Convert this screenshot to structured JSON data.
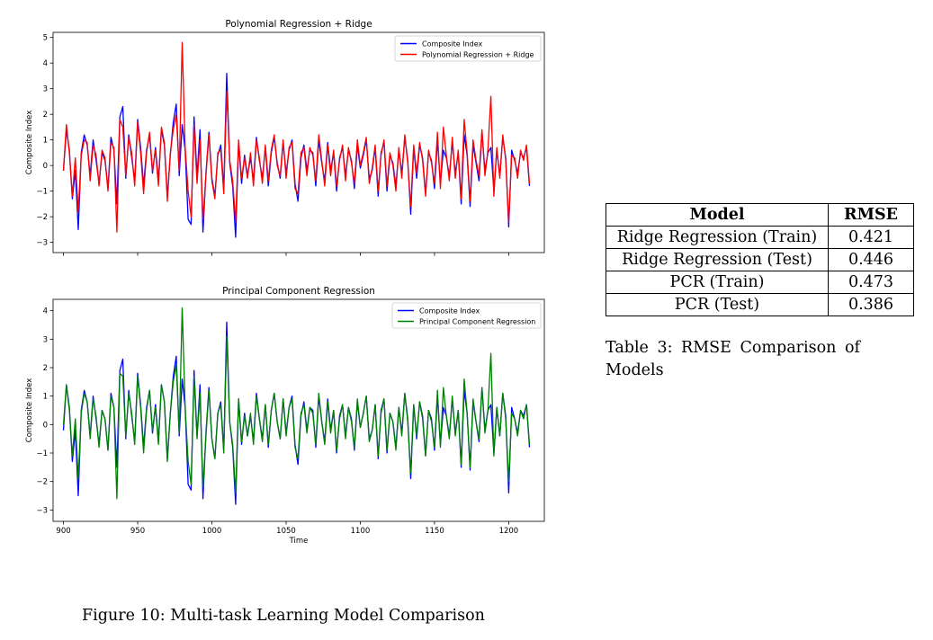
{
  "figure_caption": "Figure 10: Multi-task Learning Model Comparison",
  "table": {
    "headers": [
      "Model",
      "RMSE"
    ],
    "rows": [
      [
        "Ridge Regression (Train)",
        "0.421"
      ],
      [
        "Ridge Regression (Test)",
        "0.446"
      ],
      [
        "PCR (Train)",
        "0.473"
      ],
      [
        "PCR (Test)",
        "0.386"
      ]
    ],
    "caption": "Table 3: RMSE Comparison of Models"
  },
  "chart_data": [
    {
      "type": "line",
      "title": "Polynomial Regression + Ridge",
      "xlabel": "",
      "ylabel": "Composite Index",
      "xlim": [
        893,
        1224
      ],
      "ylim": [
        -3.4,
        5.2
      ],
      "yticks": [
        -3,
        -2,
        -1,
        0,
        1,
        2,
        3,
        4,
        5
      ],
      "ytick_labels": [
        "−3",
        "−2",
        "−1",
        "0",
        "1",
        "2",
        "3",
        "4",
        "5"
      ],
      "xticks": [
        900,
        950,
        1000,
        1050,
        1100,
        1150,
        1200
      ],
      "xtick_labels": [],
      "grid": false,
      "legend_position": "top-right",
      "x_start": 900,
      "x_step": 2,
      "series": [
        {
          "name": "Composite Index",
          "color": "#0000ff",
          "values": [
            -0.2,
            1.4,
            0.6,
            -1.3,
            -0.2,
            -2.5,
            0.5,
            1.2,
            0.8,
            -0.4,
            1.0,
            0.2,
            -0.7,
            0.5,
            0.2,
            -0.9,
            1.1,
            0.6,
            -1.5,
            1.9,
            2.3,
            -0.5,
            1.2,
            0.3,
            -0.6,
            1.8,
            0.7,
            -0.8,
            0.6,
            1.2,
            -0.3,
            0.7,
            -0.6,
            1.4,
            0.8,
            -1.2,
            0.4,
            1.7,
            2.4,
            -0.4,
            1.6,
            0.6,
            -2.1,
            -2.3,
            1.9,
            -0.4,
            1.4,
            -2.6,
            -0.3,
            1.3,
            -0.5,
            -1.2,
            0.4,
            0.8,
            -0.9,
            3.6,
            0.1,
            -0.8,
            -2.8,
            0.9,
            -0.7,
            0.4,
            -0.4,
            0.3,
            -0.6,
            1.1,
            0.2,
            -0.5,
            0.7,
            -0.8,
            0.5,
            1.1,
            0.1,
            -0.5,
            0.9,
            -0.3,
            0.6,
            1.0,
            -0.7,
            -1.4,
            0.3,
            0.8,
            -0.2,
            0.6,
            0.5,
            -0.8,
            1.0,
            0.1,
            -0.6,
            0.9,
            -0.2,
            0.5,
            -1.0,
            0.3,
            0.7,
            -0.4,
            0.6,
            0.2,
            -0.9,
            0.8,
            -0.1,
            0.4,
            1.0,
            -0.5,
            -0.2,
            0.7,
            -1.2,
            0.5,
            0.9,
            -1.0,
            0.4,
            0.1,
            -0.8,
            0.6,
            -0.3,
            1.1,
            0.2,
            -1.9,
            0.7,
            -0.5,
            0.8,
            0.3,
            -1.1,
            0.5,
            0.2,
            -0.9,
            1.0,
            -0.7,
            0.6,
            0.3,
            -0.4,
            0.9,
            -0.3,
            0.5,
            -1.5,
            1.2,
            0.4,
            -1.6,
            0.8,
            0.1,
            -0.6,
            1.3,
            -0.2,
            0.5,
            0.7,
            -1.0,
            0.6,
            -0.4,
            1.1,
            0.3,
            -2.4,
            0.6,
            0.2,
            -0.3,
            0.5,
            0.3,
            0.7,
            -0.8
          ]
        },
        {
          "name": "Polynomial Regression + Ridge",
          "color": "#ff0000",
          "values": [
            -0.2,
            1.6,
            0.5,
            -1.2,
            0.3,
            -1.8,
            0.4,
            1.0,
            0.9,
            -0.6,
            0.8,
            0.4,
            -0.8,
            0.6,
            0.3,
            -1.0,
            0.9,
            0.7,
            -2.6,
            1.8,
            1.5,
            -0.4,
            1.1,
            0.5,
            -0.8,
            1.7,
            0.5,
            -1.1,
            0.5,
            1.3,
            -0.2,
            0.6,
            -0.8,
            1.5,
            0.9,
            -1.4,
            0.5,
            1.4,
            2.0,
            -0.2,
            4.8,
            0.7,
            -1.0,
            -2.0,
            1.6,
            -0.7,
            1.0,
            -2.1,
            -0.4,
            1.2,
            -0.6,
            -1.3,
            0.5,
            0.6,
            -1.1,
            2.9,
            0.2,
            -0.6,
            -2.2,
            1.0,
            -0.5,
            0.3,
            -0.5,
            0.5,
            -0.8,
            1.0,
            0.3,
            -0.7,
            0.8,
            -0.6,
            0.6,
            1.2,
            0.0,
            -0.4,
            1.0,
            -0.5,
            0.7,
            0.9,
            -0.9,
            -1.1,
            0.5,
            0.7,
            -0.4,
            0.7,
            0.4,
            -0.6,
            1.2,
            0.2,
            -0.8,
            0.8,
            -0.4,
            0.6,
            -0.8,
            0.2,
            0.8,
            -0.6,
            0.7,
            0.1,
            -0.7,
            1.0,
            0.0,
            0.5,
            1.1,
            -0.7,
            -0.1,
            0.8,
            -1.0,
            0.4,
            1.0,
            -0.8,
            0.5,
            0.0,
            -1.0,
            0.7,
            -0.5,
            1.2,
            0.1,
            -1.6,
            0.8,
            -0.3,
            0.9,
            0.2,
            -1.2,
            0.6,
            0.1,
            -0.7,
            1.3,
            -0.9,
            1.5,
            0.4,
            -0.6,
            1.1,
            -0.5,
            0.6,
            -1.3,
            1.8,
            0.5,
            -1.4,
            1.0,
            0.2,
            -0.4,
            1.4,
            -0.4,
            0.6,
            2.7,
            -1.2,
            0.7,
            -0.5,
            1.2,
            0.2,
            -2.2,
            0.4,
            0.3,
            -0.5,
            0.6,
            0.2,
            0.8,
            -0.7
          ]
        }
      ]
    },
    {
      "type": "line",
      "title": "Principal Component Regression",
      "xlabel": "Time",
      "ylabel": "Composite Index",
      "xlim": [
        893,
        1224
      ],
      "ylim": [
        -3.4,
        4.4
      ],
      "yticks": [
        -3,
        -2,
        -1,
        0,
        1,
        2,
        3,
        4
      ],
      "ytick_labels": [
        "−3",
        "−2",
        "−1",
        "0",
        "1",
        "2",
        "3",
        "4"
      ],
      "xticks": [
        900,
        950,
        1000,
        1050,
        1100,
        1150,
        1200
      ],
      "xtick_labels": [
        "900",
        "950",
        "1000",
        "1050",
        "1100",
        "1150",
        "1200"
      ],
      "grid": false,
      "legend_position": "top-right",
      "x_start": 900,
      "x_step": 2,
      "series": [
        {
          "name": "Composite Index",
          "color": "#0000ff",
          "values": [
            -0.2,
            1.4,
            0.6,
            -1.3,
            -0.2,
            -2.5,
            0.5,
            1.2,
            0.8,
            -0.4,
            1.0,
            0.2,
            -0.7,
            0.5,
            0.2,
            -0.9,
            1.1,
            0.6,
            -1.5,
            1.9,
            2.3,
            -0.5,
            1.2,
            0.3,
            -0.6,
            1.8,
            0.7,
            -0.8,
            0.6,
            1.2,
            -0.3,
            0.7,
            -0.6,
            1.4,
            0.8,
            -1.2,
            0.4,
            1.7,
            2.4,
            -0.4,
            1.6,
            0.6,
            -2.1,
            -2.3,
            1.9,
            -0.4,
            1.4,
            -2.6,
            -0.3,
            1.3,
            -0.5,
            -1.2,
            0.4,
            0.8,
            -0.9,
            3.6,
            0.1,
            -0.8,
            -2.8,
            0.9,
            -0.7,
            0.4,
            -0.4,
            0.3,
            -0.6,
            1.1,
            0.2,
            -0.5,
            0.7,
            -0.8,
            0.5,
            1.1,
            0.1,
            -0.5,
            0.9,
            -0.3,
            0.6,
            1.0,
            -0.7,
            -1.4,
            0.3,
            0.8,
            -0.2,
            0.6,
            0.5,
            -0.8,
            1.0,
            0.1,
            -0.6,
            0.9,
            -0.2,
            0.5,
            -1.0,
            0.3,
            0.7,
            -0.4,
            0.6,
            0.2,
            -0.9,
            0.8,
            -0.1,
            0.4,
            1.0,
            -0.5,
            -0.2,
            0.7,
            -1.2,
            0.5,
            0.9,
            -1.0,
            0.4,
            0.1,
            -0.8,
            0.6,
            -0.3,
            1.1,
            0.2,
            -1.9,
            0.7,
            -0.5,
            0.8,
            0.3,
            -1.1,
            0.5,
            0.2,
            -0.9,
            1.0,
            -0.7,
            0.6,
            0.3,
            -0.4,
            0.9,
            -0.3,
            0.5,
            -1.5,
            1.2,
            0.4,
            -1.6,
            0.8,
            0.1,
            -0.6,
            1.3,
            -0.2,
            0.5,
            0.7,
            -1.0,
            0.6,
            -0.4,
            1.1,
            0.3,
            -2.4,
            0.6,
            0.2,
            -0.3,
            0.5,
            0.3,
            0.7,
            -0.8
          ]
        },
        {
          "name": "Principal Component Regression",
          "color": "#008000",
          "values": [
            0.0,
            1.4,
            0.5,
            -1.1,
            0.2,
            -1.9,
            0.4,
            1.1,
            0.8,
            -0.5,
            0.9,
            0.3,
            -0.8,
            0.5,
            0.2,
            -0.9,
            1.0,
            0.6,
            -2.6,
            1.8,
            1.7,
            -0.4,
            1.1,
            0.4,
            -0.7,
            1.7,
            0.6,
            -1.0,
            0.5,
            1.2,
            -0.2,
            0.6,
            -0.7,
            1.4,
            0.8,
            -1.3,
            0.4,
            1.5,
            2.1,
            -0.3,
            4.1,
            0.6,
            -1.3,
            -2.1,
            1.7,
            -0.5,
            1.1,
            -2.2,
            -0.4,
            1.2,
            -0.5,
            -1.2,
            0.4,
            0.7,
            -1.0,
            3.1,
            0.1,
            -0.7,
            -2.4,
            0.9,
            -0.6,
            0.3,
            -0.4,
            0.4,
            -0.7,
            1.0,
            0.2,
            -0.6,
            0.7,
            -0.7,
            0.5,
            1.1,
            0.1,
            -0.5,
            0.9,
            -0.4,
            0.6,
            0.9,
            -0.8,
            -1.2,
            0.4,
            0.7,
            -0.3,
            0.6,
            0.4,
            -0.7,
            1.1,
            0.1,
            -0.7,
            0.8,
            -0.3,
            0.5,
            -0.9,
            0.2,
            0.7,
            -0.5,
            0.6,
            0.1,
            -0.8,
            0.9,
            -0.1,
            0.4,
            1.0,
            -0.6,
            -0.2,
            0.7,
            -1.1,
            0.4,
            0.9,
            -0.9,
            0.4,
            0.1,
            -0.9,
            0.6,
            -0.4,
            1.1,
            0.1,
            -1.7,
            0.7,
            -0.4,
            0.8,
            0.2,
            -1.1,
            0.5,
            0.1,
            -0.8,
            1.2,
            -0.8,
            1.3,
            0.3,
            -0.5,
            1.0,
            -0.4,
            0.5,
            -1.4,
            1.6,
            0.4,
            -1.5,
            0.9,
            0.1,
            -0.5,
            1.3,
            -0.3,
            0.5,
            2.5,
            -1.1,
            0.6,
            -0.4,
            1.1,
            0.2,
            -2.0,
            0.4,
            0.2,
            -0.4,
            0.5,
            0.2,
            0.7,
            -0.7
          ]
        }
      ]
    }
  ]
}
